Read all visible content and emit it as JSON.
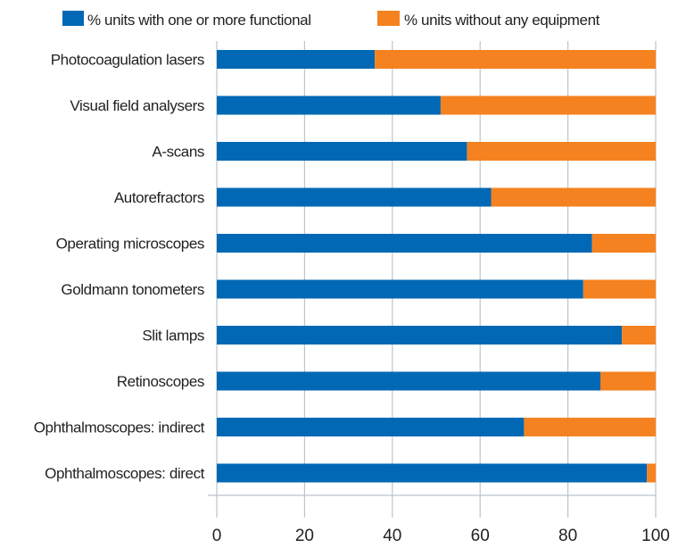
{
  "chart_data": {
    "type": "bar",
    "orientation": "horizontal",
    "stacked": true,
    "title": "",
    "xlabel": "",
    "ylabel": "",
    "xlim": [
      0,
      100
    ],
    "x_ticks": [
      "0",
      "20",
      "40",
      "60",
      "80",
      "100"
    ],
    "grid": true,
    "legend_position": "top",
    "categories": [
      "Photocoagulation lasers",
      "Visual field analysers",
      "A-scans",
      "Autorefractors",
      "Operating microscopes",
      "Goldmann tonometers",
      "Slit lamps",
      "Retinoscopes",
      "Ophthalmoscopes: indirect",
      "Ophthalmoscopes: direct"
    ],
    "series": [
      {
        "name": "% units with one or more functional",
        "color": "#0068b4",
        "values": [
          36,
          51,
          57,
          62.5,
          85.5,
          83.5,
          92.3,
          87.4,
          70,
          98
        ]
      },
      {
        "name": "% units without any equipment",
        "color": "#f58220",
        "values": [
          64,
          49,
          43,
          37.5,
          14.5,
          16.5,
          7.7,
          12.6,
          30,
          2
        ]
      }
    ]
  }
}
